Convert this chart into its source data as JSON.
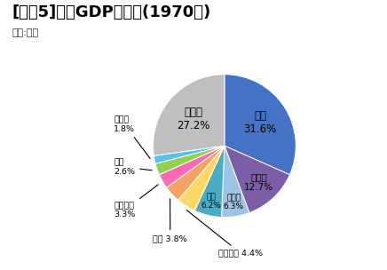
{
  "title": "[図表5]名目GDPシェア(1970年)",
  "subtitle": "資料:国連",
  "labels": [
    "米国",
    "旧ソ連",
    "ドイツ",
    "日本",
    "フランス",
    "英国",
    "イタリア",
    "中国",
    "インド",
    "その他"
  ],
  "values": [
    31.6,
    12.7,
    6.3,
    6.2,
    4.4,
    3.8,
    3.3,
    2.6,
    1.8,
    27.2
  ],
  "colors": [
    "#4472C4",
    "#7B5EA7",
    "#9DC3E6",
    "#4BACC6",
    "#FFD966",
    "#F4A460",
    "#FF69B4",
    "#92D050",
    "#57C4E5",
    "#BFBFBF"
  ],
  "bg_color": "#FFFFFF",
  "title_fontsize": 13,
  "subtitle_fontsize": 8,
  "label_fontsize": 7.5
}
